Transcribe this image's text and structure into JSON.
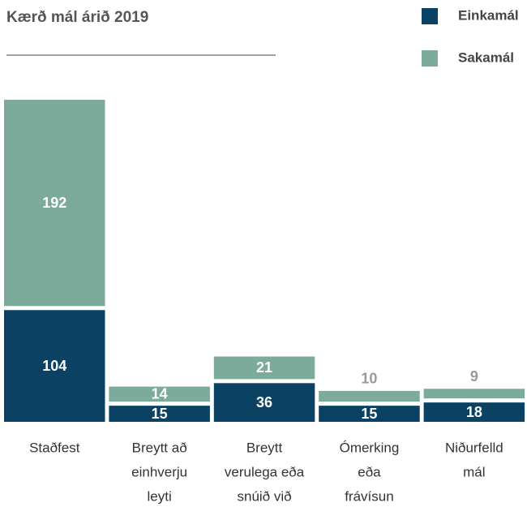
{
  "chart_data": {
    "type": "stacked-bar",
    "title": "Kærð mál árið 2019",
    "categories": [
      [
        "Staðfest"
      ],
      [
        "Breytt að",
        "einhverju",
        "leyti"
      ],
      [
        "Breytt",
        "verulega eða",
        "snúið við"
      ],
      [
        "Ómerking",
        "eða",
        "frávísun"
      ],
      [
        "Niðurfelld",
        "mál"
      ]
    ],
    "series": [
      {
        "name": "Einkamál",
        "color": "#0b4263",
        "values": [
          104,
          15,
          36,
          15,
          18
        ]
      },
      {
        "name": "Sakamál",
        "color": "#7dab9b",
        "values": [
          192,
          14,
          21,
          10,
          9
        ]
      }
    ]
  }
}
